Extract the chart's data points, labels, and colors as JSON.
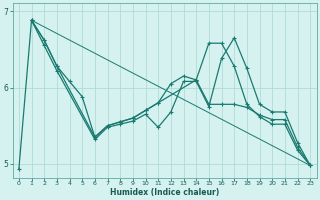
{
  "xlabel": "Humidex (Indice chaleur)",
  "background_color": "#d5f2f0",
  "grid_color": "#b0dbd8",
  "line_color": "#1a7a70",
  "xlim": [
    -0.5,
    23.5
  ],
  "ylim": [
    4.82,
    7.1
  ],
  "yticks": [
    5,
    6,
    7
  ],
  "xticks": [
    0,
    1,
    2,
    3,
    4,
    5,
    6,
    7,
    8,
    9,
    10,
    11,
    12,
    13,
    14,
    15,
    16,
    17,
    18,
    19,
    20,
    21,
    22,
    23
  ],
  "series1_x": [
    0,
    1,
    2,
    3,
    4,
    5,
    6,
    7,
    8,
    9,
    10,
    11,
    12,
    13,
    14,
    15,
    16,
    17,
    18,
    19,
    20,
    21,
    22,
    23
  ],
  "series1_y": [
    4.93,
    6.88,
    6.62,
    6.28,
    6.08,
    5.88,
    5.35,
    5.5,
    5.55,
    5.6,
    5.7,
    5.8,
    6.05,
    6.15,
    6.1,
    5.78,
    5.78,
    5.78,
    5.74,
    5.64,
    5.58,
    5.58,
    5.22,
    4.98
  ],
  "series2_x": [
    1,
    2,
    3,
    6,
    7,
    8,
    9,
    10,
    11,
    14,
    15,
    16,
    17,
    18,
    19,
    20,
    21,
    22,
    23
  ],
  "series2_y": [
    6.88,
    6.62,
    6.28,
    5.35,
    5.5,
    5.55,
    5.6,
    5.7,
    5.8,
    6.1,
    6.58,
    6.58,
    6.28,
    5.78,
    5.62,
    5.52,
    5.52,
    5.18,
    4.98
  ],
  "series3_x": [
    1,
    2,
    3,
    6,
    7,
    8,
    9,
    10,
    11,
    12,
    13,
    14,
    15,
    16,
    17,
    18,
    19,
    20,
    21,
    22,
    23
  ],
  "series3_y": [
    6.88,
    6.55,
    6.22,
    5.32,
    5.48,
    5.52,
    5.56,
    5.65,
    5.48,
    5.68,
    6.08,
    6.08,
    5.75,
    6.38,
    6.65,
    6.25,
    5.78,
    5.68,
    5.68,
    5.28,
    4.98
  ],
  "trend_x": [
    1,
    23
  ],
  "trend_y": [
    6.88,
    4.98
  ]
}
